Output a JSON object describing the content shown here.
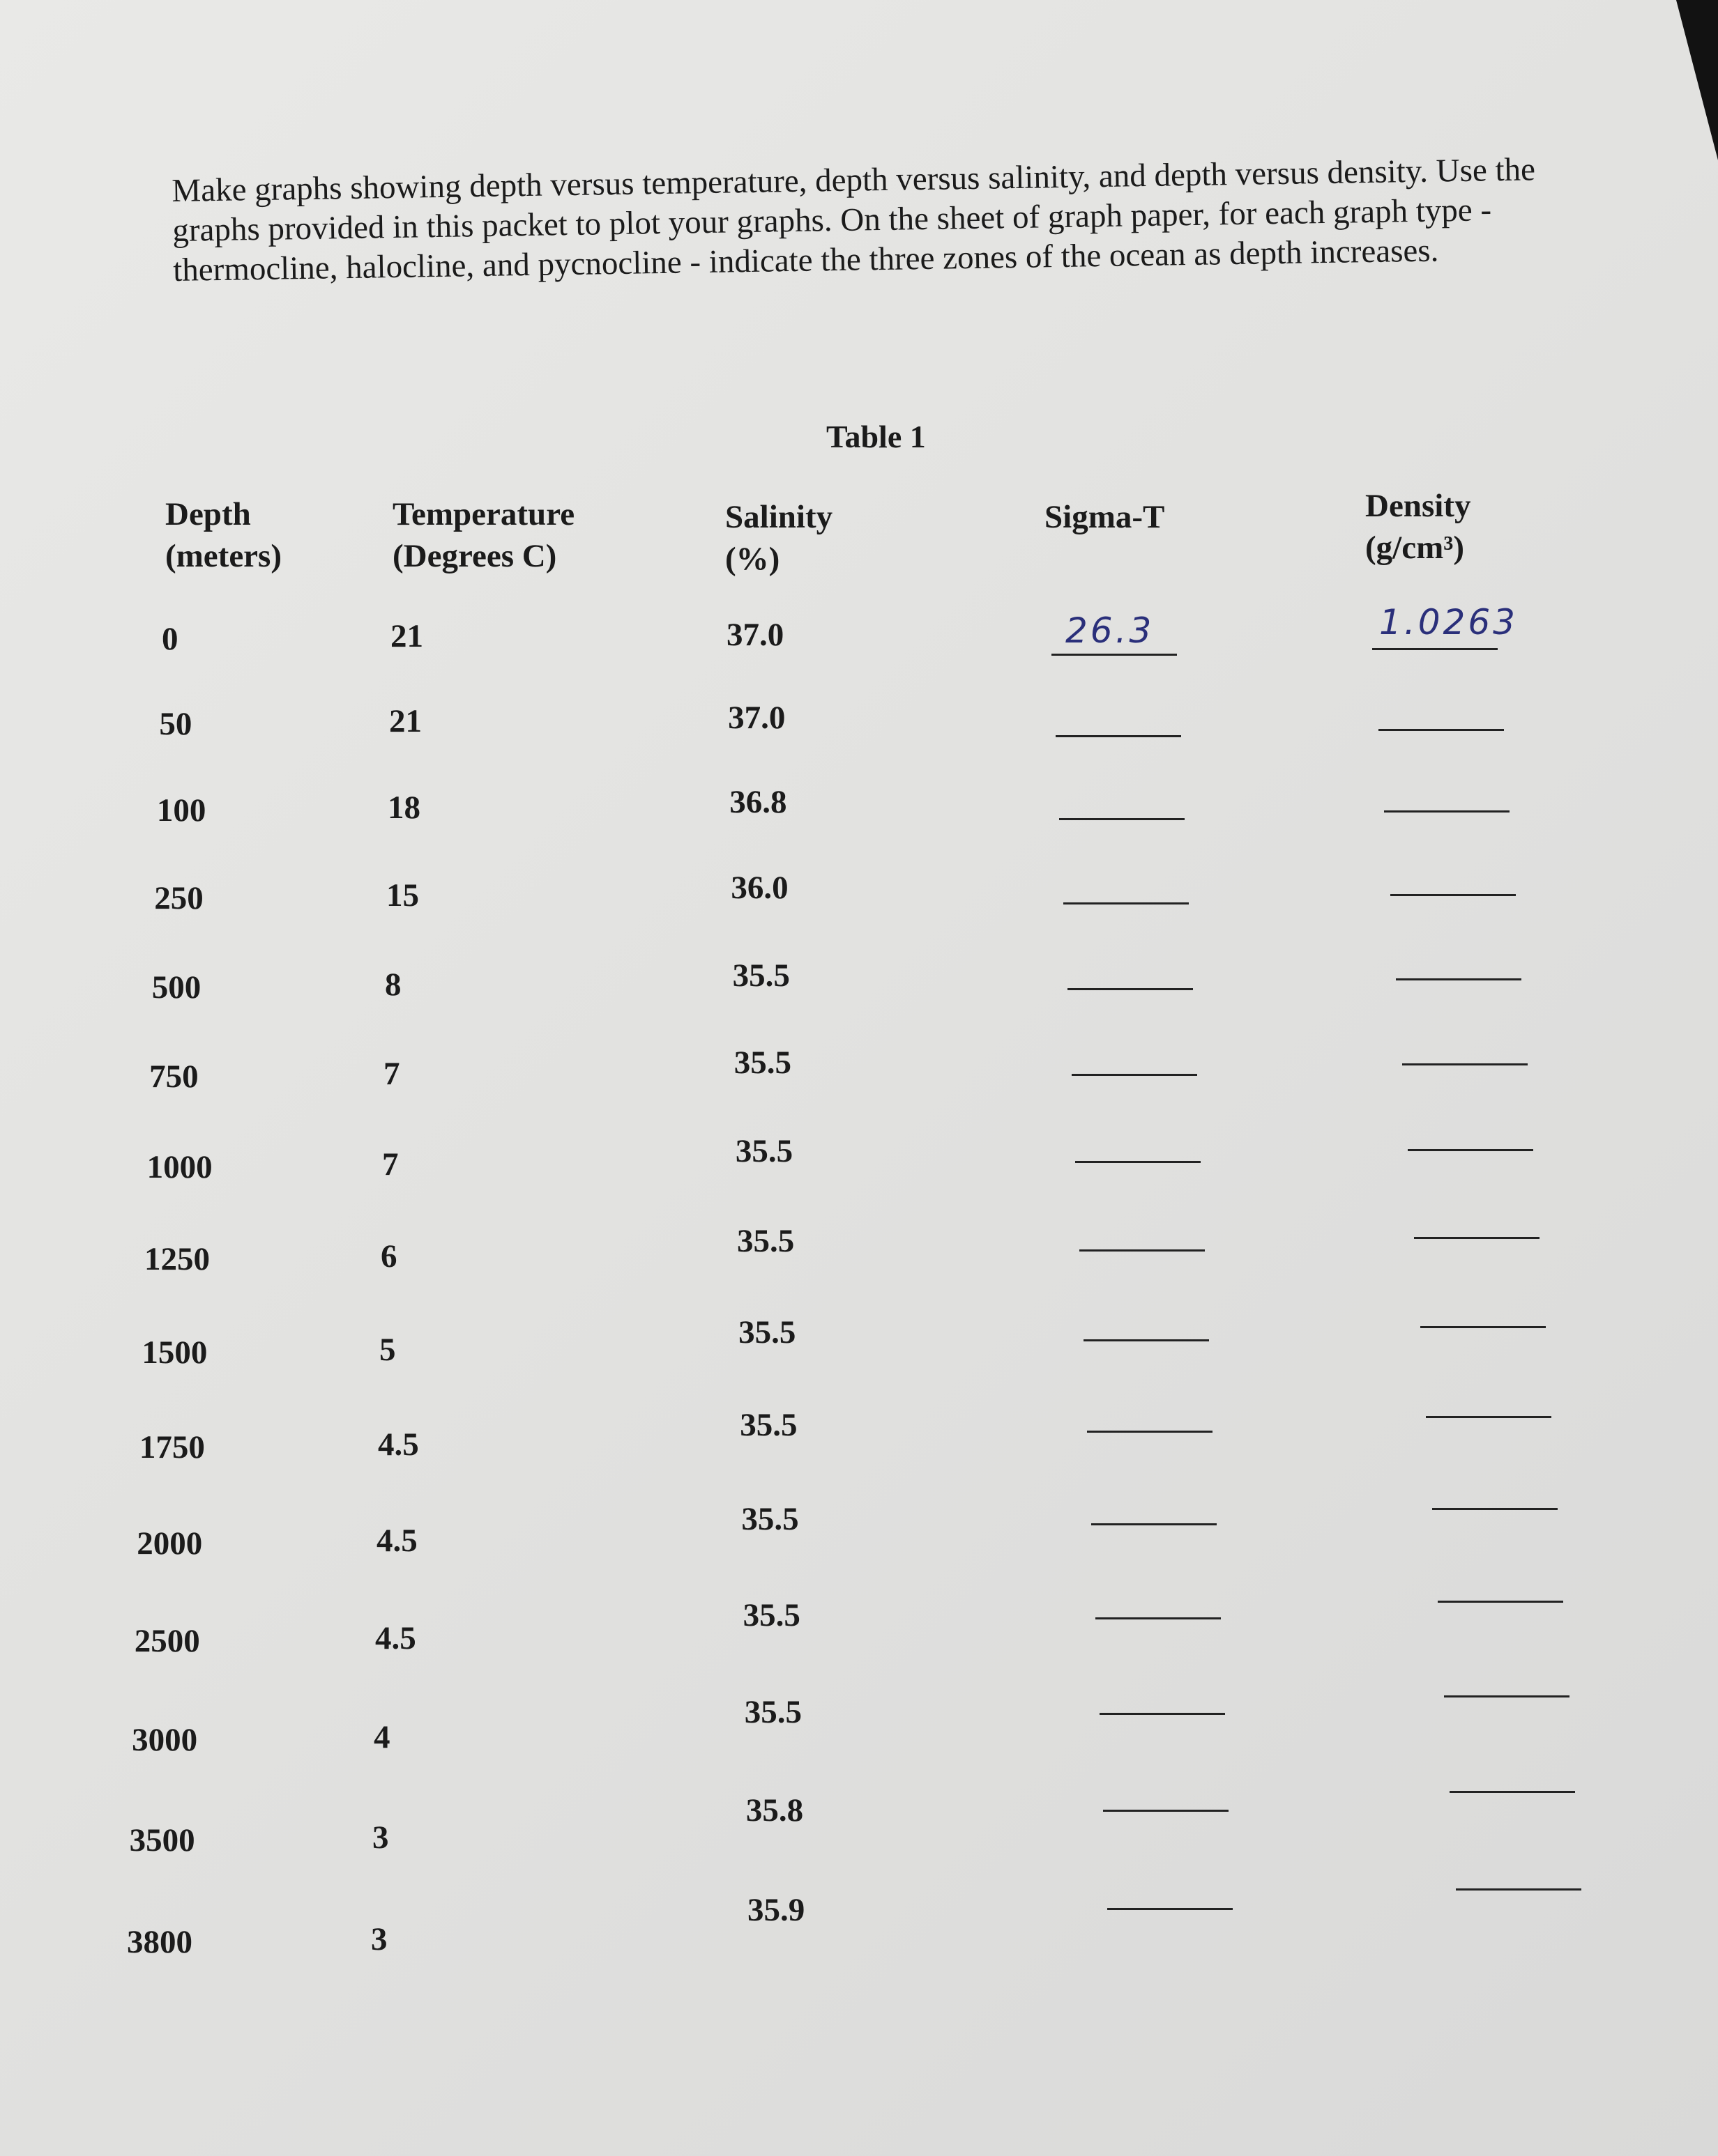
{
  "instructions": "Make graphs showing depth versus temperature, depth versus salinity, and depth versus density. Use the graphs provided in this packet to plot your graphs.  On the sheet of graph paper, for each graph type - thermocline, halocline, and pycnocline - indicate the three zones of the ocean as depth increases.",
  "table": {
    "title": "Table 1",
    "headers": [
      {
        "line1": "Depth",
        "line2": "(meters)"
      },
      {
        "line1": "Temperature",
        "line2": "(Degrees C)"
      },
      {
        "line1": "Salinity",
        "line2": "(%)"
      },
      {
        "line1": "Sigma-T",
        "line2": ""
      },
      {
        "line1": "Density",
        "line2": "(g/cm³)"
      }
    ],
    "rows": [
      {
        "depth": "0",
        "temperature": "21",
        "salinity": "37.0",
        "sigma_t": "26.3",
        "density": "1.0263"
      },
      {
        "depth": "50",
        "temperature": "21",
        "salinity": "37.0",
        "sigma_t": "",
        "density": ""
      },
      {
        "depth": "100",
        "temperature": "18",
        "salinity": "36.8",
        "sigma_t": "",
        "density": ""
      },
      {
        "depth": "250",
        "temperature": "15",
        "salinity": "36.0",
        "sigma_t": "",
        "density": ""
      },
      {
        "depth": "500",
        "temperature": "8",
        "salinity": "35.5",
        "sigma_t": "",
        "density": ""
      },
      {
        "depth": "750",
        "temperature": "7",
        "salinity": "35.5",
        "sigma_t": "",
        "density": ""
      },
      {
        "depth": "1000",
        "temperature": "7",
        "salinity": "35.5",
        "sigma_t": "",
        "density": ""
      },
      {
        "depth": "1250",
        "temperature": "6",
        "salinity": "35.5",
        "sigma_t": "",
        "density": ""
      },
      {
        "depth": "1500",
        "temperature": "5",
        "salinity": "35.5",
        "sigma_t": "",
        "density": ""
      },
      {
        "depth": "1750",
        "temperature": "4.5",
        "salinity": "35.5",
        "sigma_t": "",
        "density": ""
      },
      {
        "depth": "2000",
        "temperature": "4.5",
        "salinity": "35.5",
        "sigma_t": "",
        "density": ""
      },
      {
        "depth": "2500",
        "temperature": "4.5",
        "salinity": "35.5",
        "sigma_t": "",
        "density": ""
      },
      {
        "depth": "3000",
        "temperature": "4",
        "salinity": "35.5",
        "sigma_t": "",
        "density": ""
      },
      {
        "depth": "3500",
        "temperature": "3",
        "salinity": "35.8",
        "sigma_t": "",
        "density": ""
      },
      {
        "depth": "3800",
        "temperature": "3",
        "salinity": "35.9",
        "sigma_t": "",
        "density": ""
      }
    ]
  }
}
